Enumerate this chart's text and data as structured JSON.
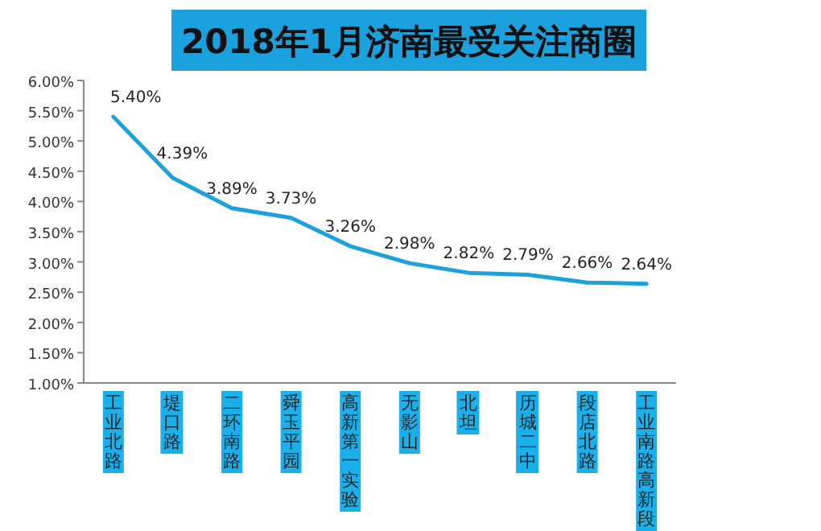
{
  "chart_data": {
    "type": "line",
    "title": "2018年1月济南最受关注商圈",
    "categories": [
      "工业北路",
      "堤口路",
      "二环南路",
      "舜玉平园",
      "高新第一实验",
      "无影山",
      "北坦",
      "历城二中",
      "段店北路",
      "工业南路高新段"
    ],
    "values": [
      5.4,
      4.39,
      3.89,
      3.73,
      3.26,
      2.98,
      2.82,
      2.79,
      2.66,
      2.64
    ],
    "value_labels": [
      "5.40%",
      "4.39%",
      "3.89%",
      "3.73%",
      "3.26%",
      "2.98%",
      "2.82%",
      "2.79%",
      "2.66%",
      "2.64%"
    ],
    "color": "#1ba1dd",
    "marker": "none",
    "line_style": "solid",
    "grid": false,
    "legend": false,
    "ylim": [
      1,
      6
    ],
    "yticks": [
      {
        "value": 1,
        "label": "1.00%"
      },
      {
        "value": 1.5,
        "label": "1.50%"
      },
      {
        "value": 2,
        "label": "2.00%"
      },
      {
        "value": 2.5,
        "label": "2.50%"
      },
      {
        "value": 3,
        "label": "3.00%"
      },
      {
        "value": 3.5,
        "label": "3.50%"
      },
      {
        "value": 4,
        "label": "4.00%"
      },
      {
        "value": 4.5,
        "label": "4.50%"
      },
      {
        "value": 5,
        "label": "5.00%"
      },
      {
        "value": 5.5,
        "label": "5.50%"
      },
      {
        "value": 6,
        "label": "6.00%"
      }
    ]
  }
}
